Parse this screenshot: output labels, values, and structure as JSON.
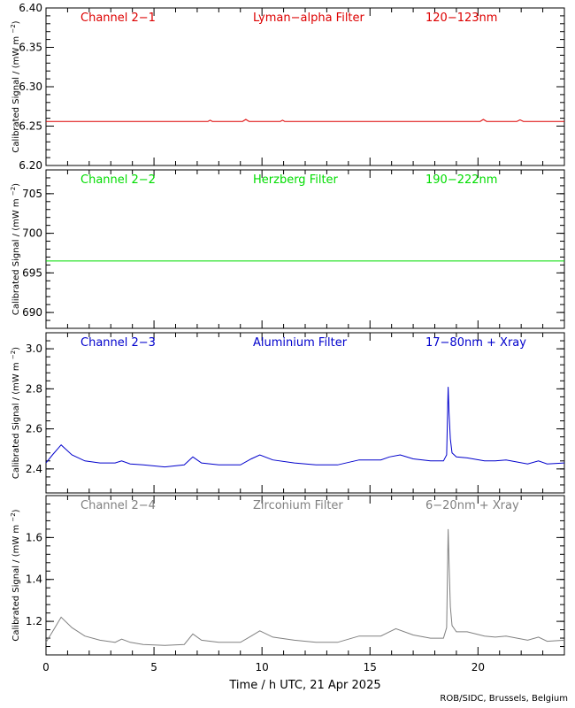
{
  "chart_data": {
    "type": "line",
    "xlabel": "Time / h UTC, 21 Apr 2025",
    "credit": "ROB/SIDC, Brussels, Belgium",
    "xlim": [
      0,
      24
    ],
    "xticks": [
      "0",
      "5",
      "10",
      "15",
      "20"
    ],
    "ylabel": "Calibrated Signal / (mW m",
    "ylabel_sup": "−2",
    "ylabel_close": ")",
    "panels": [
      {
        "channel": "Channel 2−1",
        "filter": "Lyman−alpha Filter",
        "band": "120−123nm",
        "color": "#dd0000",
        "ylim": [
          6.2,
          6.4
        ],
        "yticks": [
          "6.20",
          "6.25",
          "6.30",
          "6.35",
          "6.40"
        ],
        "series": {
          "x": [
            0,
            7.5,
            7.6,
            7.7,
            9.1,
            9.25,
            9.4,
            10.85,
            10.95,
            11.05,
            20.1,
            20.25,
            20.4,
            21.8,
            21.95,
            22.1,
            24
          ],
          "y": [
            6.256,
            6.256,
            6.2575,
            6.256,
            6.256,
            6.2585,
            6.256,
            6.256,
            6.2575,
            6.256,
            6.256,
            6.2585,
            6.256,
            6.256,
            6.258,
            6.256,
            6.256
          ]
        }
      },
      {
        "channel": "Channel 2−2",
        "filter": "Herzberg Filter",
        "band": "190−222nm",
        "color": "#00dd00",
        "ylim": [
          688,
          708
        ],
        "yticks": [
          "690",
          "695",
          "700",
          "705"
        ],
        "series": {
          "x": [
            0,
            24
          ],
          "y": [
            696.5,
            696.5
          ]
        }
      },
      {
        "channel": "Channel 2−3",
        "filter": "Aluminium Filter",
        "band": "17−80nm + Xray",
        "color": "#0000cc",
        "ylim": [
          2.28,
          3.08
        ],
        "yticks": [
          "2.4",
          "2.6",
          "2.8",
          "3.0"
        ],
        "series": {
          "x": [
            0,
            0.3,
            0.7,
            1.2,
            1.8,
            2.5,
            3.2,
            3.5,
            3.9,
            4.5,
            5.5,
            6.4,
            6.8,
            7.2,
            8.0,
            9.0,
            9.5,
            9.9,
            10.5,
            11.5,
            12.5,
            13.5,
            14.5,
            15.5,
            15.9,
            16.4,
            17.0,
            17.8,
            18.4,
            18.55,
            18.62,
            18.66,
            18.72,
            18.8,
            19.0,
            19.5,
            20.3,
            20.8,
            21.3,
            22.3,
            22.8,
            23.2,
            24
          ],
          "y": [
            2.43,
            2.47,
            2.52,
            2.47,
            2.44,
            2.43,
            2.43,
            2.44,
            2.425,
            2.42,
            2.41,
            2.42,
            2.46,
            2.43,
            2.42,
            2.42,
            2.45,
            2.47,
            2.445,
            2.43,
            2.42,
            2.42,
            2.445,
            2.445,
            2.46,
            2.47,
            2.45,
            2.44,
            2.44,
            2.47,
            2.81,
            2.68,
            2.55,
            2.48,
            2.46,
            2.455,
            2.44,
            2.44,
            2.445,
            2.425,
            2.44,
            2.425,
            2.43
          ]
        }
      },
      {
        "channel": "Channel 2−4",
        "filter": "Zirconium Filter",
        "band": "6−20nm + Xray",
        "color": "#808080",
        "ylim": [
          1.04,
          1.8
        ],
        "yticks": [
          "1.2",
          "1.4",
          "1.6"
        ],
        "series": {
          "x": [
            0,
            0.3,
            0.7,
            1.2,
            1.8,
            2.5,
            3.2,
            3.5,
            3.9,
            4.5,
            5.5,
            6.4,
            6.8,
            7.2,
            8.0,
            9.0,
            9.5,
            9.9,
            10.5,
            11.5,
            12.5,
            13.5,
            14.5,
            15.5,
            15.9,
            16.2,
            17.0,
            17.8,
            18.4,
            18.55,
            18.62,
            18.66,
            18.72,
            18.8,
            19.0,
            19.5,
            20.3,
            20.8,
            21.3,
            22.3,
            22.8,
            23.2,
            24
          ],
          "y": [
            1.1,
            1.15,
            1.22,
            1.17,
            1.13,
            1.11,
            1.1,
            1.115,
            1.1,
            1.09,
            1.085,
            1.09,
            1.14,
            1.11,
            1.1,
            1.1,
            1.13,
            1.155,
            1.125,
            1.11,
            1.1,
            1.1,
            1.13,
            1.13,
            1.15,
            1.165,
            1.135,
            1.12,
            1.12,
            1.17,
            1.64,
            1.48,
            1.27,
            1.18,
            1.15,
            1.15,
            1.13,
            1.125,
            1.13,
            1.11,
            1.125,
            1.105,
            1.11
          ]
        }
      }
    ]
  }
}
